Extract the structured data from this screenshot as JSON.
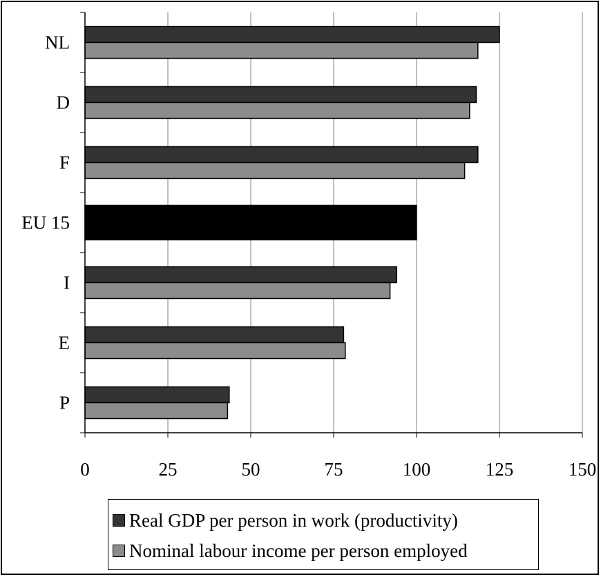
{
  "chart_data": {
    "type": "bar",
    "orientation": "horizontal",
    "categories": [
      "NL",
      "D",
      "F",
      "EU 15",
      "I",
      "E",
      "P"
    ],
    "series": [
      {
        "name": "Real GDP per person in work (productivity)",
        "color": "#333333",
        "values": [
          125,
          118,
          118.5,
          100,
          94,
          78,
          43.5
        ]
      },
      {
        "name": "Nominal labour income per person employed",
        "color": "#8c8c8c",
        "values": [
          118.5,
          116,
          114.5,
          100,
          92,
          78.5,
          43
        ]
      }
    ],
    "highlight": {
      "category": "EU 15",
      "color": "#000000"
    },
    "xlim": [
      0,
      150
    ],
    "xticks": [
      0,
      25,
      50,
      75,
      100,
      125,
      150
    ],
    "xtick_labels": [
      "0",
      "25",
      "50",
      "75",
      "100",
      "125",
      "150"
    ],
    "grid": "vertical",
    "legend_position": "bottom"
  }
}
